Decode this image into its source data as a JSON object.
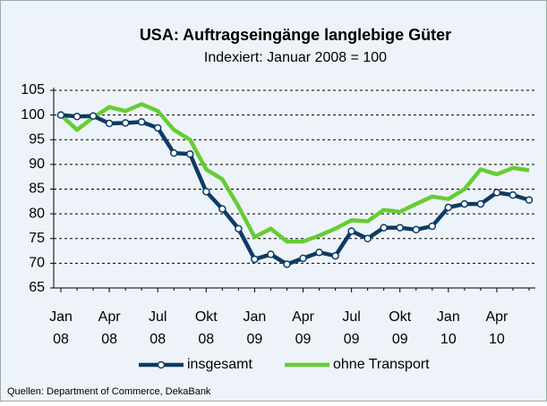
{
  "chart_data": {
    "type": "line",
    "title": "USA: Auftragseingänge langlebige Güter",
    "subtitle": "Indexiert: Januar 2008 = 100",
    "source": "Quellen: Department of Commerce, DekaBank",
    "categories": [
      "Jan 08",
      null,
      null,
      "Apr 08",
      null,
      null,
      "Jul 08",
      null,
      null,
      "Okt 08",
      null,
      null,
      "Jan 09",
      null,
      null,
      "Apr 09",
      null,
      null,
      "Jul 09",
      null,
      null,
      "Okt 09",
      null,
      null,
      "Jan 10",
      null,
      null,
      "Apr 10",
      null,
      null
    ],
    "series": [
      {
        "name": "insgesamt",
        "color": "#0d3b66",
        "marker": true,
        "values": [
          100,
          99.7,
          99.8,
          98.3,
          98.4,
          98.6,
          97.4,
          92.3,
          92.1,
          84.5,
          81,
          77,
          70.8,
          71.8,
          69.8,
          71,
          72.2,
          71.5,
          76.5,
          75,
          77.2,
          77.2,
          76.8,
          77.5,
          81.3,
          82,
          82,
          84.3,
          83.8,
          82.8
        ]
      },
      {
        "name": "ohne Transport",
        "color": "#66cc33",
        "marker": false,
        "values": [
          100,
          97,
          99.5,
          101.6,
          100.8,
          102.2,
          100.8,
          97,
          95,
          89,
          87,
          81.5,
          75.3,
          77,
          74.4,
          74.4,
          75.6,
          77,
          78.7,
          78.5,
          80.8,
          80.4,
          82,
          83.5,
          83,
          85,
          89,
          88,
          89.3,
          88.8
        ]
      }
    ],
    "ylim": [
      65,
      105
    ],
    "yticks": [
      65,
      70,
      75,
      80,
      85,
      90,
      95,
      100,
      105
    ],
    "grid": true,
    "legend": "bottom"
  }
}
